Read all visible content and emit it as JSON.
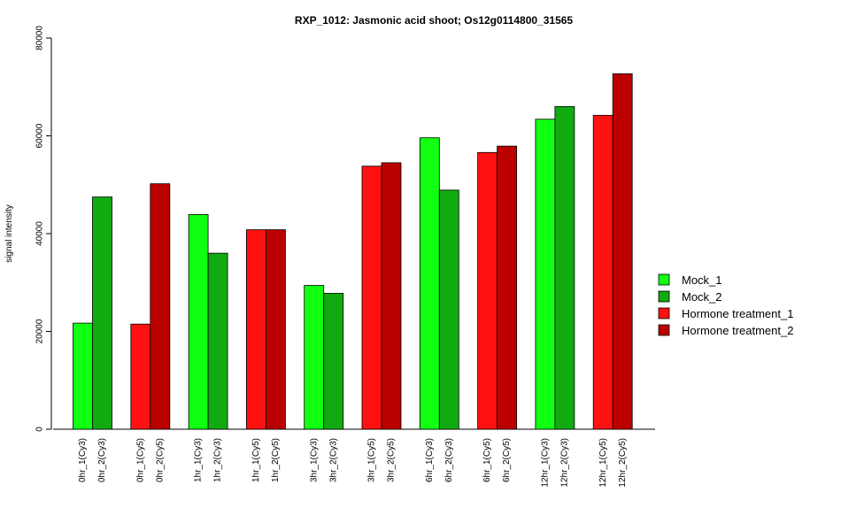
{
  "chart_data": {
    "type": "bar",
    "title": "RXP_1012: Jasmonic acid shoot; Os12g0114800_31565",
    "xlabel": "",
    "ylabel": "signal intensity",
    "ylim": [
      0,
      80000
    ],
    "yticks": [
      "0",
      "20000",
      "40000",
      "60000",
      "80000"
    ],
    "ytick_values": [
      0,
      20000,
      40000,
      60000,
      80000
    ],
    "legend_position": "right",
    "series_colors": {
      "Mock_1": "#11ff11",
      "Mock_2": "#11aa11",
      "Hormone treatment_1": "#ff1111",
      "Hormone treatment_2": "#bb0000"
    },
    "legend": [
      {
        "name": "Mock_1",
        "color": "#11ff11"
      },
      {
        "name": "Mock_2",
        "color": "#11aa11"
      },
      {
        "name": "Hormone treatment_1",
        "color": "#ff1111"
      },
      {
        "name": "Hormone treatment_2",
        "color": "#bb0000"
      }
    ],
    "groups": [
      {
        "bars": [
          {
            "label": "0hr_1(Cy3)",
            "value": 21700,
            "series": "Mock_1"
          },
          {
            "label": "0hr_2(Cy3)",
            "value": 47500,
            "series": "Mock_2"
          }
        ]
      },
      {
        "bars": [
          {
            "label": "0hr_1(Cy5)",
            "value": 21500,
            "series": "Hormone treatment_1"
          },
          {
            "label": "0hr_2(Cy5)",
            "value": 50200,
            "series": "Hormone treatment_2"
          }
        ]
      },
      {
        "bars": [
          {
            "label": "1hr_1(Cy3)",
            "value": 43900,
            "series": "Mock_1"
          },
          {
            "label": "1hr_2(Cy3)",
            "value": 36000,
            "series": "Mock_2"
          }
        ]
      },
      {
        "bars": [
          {
            "label": "1hr_1(Cy5)",
            "value": 40800,
            "series": "Hormone treatment_1"
          },
          {
            "label": "1hr_2(Cy5)",
            "value": 40800,
            "series": "Hormone treatment_2"
          }
        ]
      },
      {
        "bars": [
          {
            "label": "3hr_1(Cy3)",
            "value": 29400,
            "series": "Mock_1"
          },
          {
            "label": "3hr_2(Cy3)",
            "value": 27800,
            "series": "Mock_2"
          }
        ]
      },
      {
        "bars": [
          {
            "label": "3hr_1(Cy5)",
            "value": 53800,
            "series": "Hormone treatment_1"
          },
          {
            "label": "3hr_2(Cy5)",
            "value": 54500,
            "series": "Hormone treatment_2"
          }
        ]
      },
      {
        "bars": [
          {
            "label": "6hr_1(Cy3)",
            "value": 59600,
            "series": "Mock_1"
          },
          {
            "label": "6hr_2(Cy3)",
            "value": 48900,
            "series": "Mock_2"
          }
        ]
      },
      {
        "bars": [
          {
            "label": "6hr_1(Cy5)",
            "value": 56600,
            "series": "Hormone treatment_1"
          },
          {
            "label": "6hr_2(Cy5)",
            "value": 57900,
            "series": "Hormone treatment_2"
          }
        ]
      },
      {
        "bars": [
          {
            "label": "12hr_1(Cy3)",
            "value": 63400,
            "series": "Mock_1"
          },
          {
            "label": "12hr_2(Cy3)",
            "value": 66000,
            "series": "Mock_2"
          }
        ]
      },
      {
        "bars": [
          {
            "label": "12hr_1(Cy5)",
            "value": 64200,
            "series": "Hormone treatment_1"
          },
          {
            "label": "12hr_2(Cy5)",
            "value": 72700,
            "series": "Hormone treatment_2"
          }
        ]
      }
    ]
  }
}
